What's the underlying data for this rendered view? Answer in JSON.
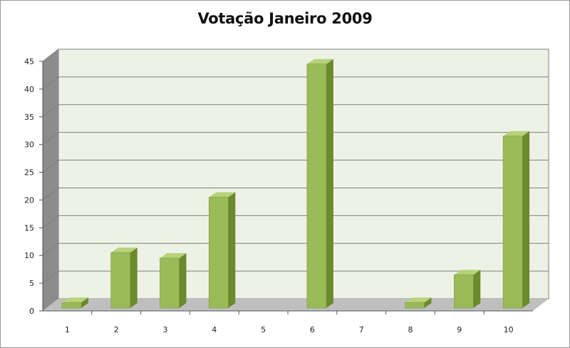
{
  "chart_data": {
    "type": "bar",
    "title": "Votação Janeiro 2009",
    "xlabel": "",
    "ylabel": "",
    "categories": [
      "1",
      "2",
      "3",
      "4",
      "5",
      "6",
      "7",
      "8",
      "9",
      "10"
    ],
    "values": [
      1,
      10,
      9,
      20,
      0,
      44,
      0,
      1,
      6,
      31
    ],
    "ylim": [
      0,
      45
    ],
    "yticks": [
      "0",
      "5",
      "10",
      "15",
      "20",
      "25",
      "30",
      "35",
      "40",
      "45"
    ],
    "grid": true,
    "legend": "none",
    "colors": {
      "bar_front": "#9bbb59",
      "bar_side": "#6b8a2e",
      "bar_top": "#b7d27a",
      "wall": "#eef2e6",
      "side_wall": "#8c8c8c",
      "floor": "#bfbfbf",
      "gridline": "#7f7f7f"
    }
  }
}
